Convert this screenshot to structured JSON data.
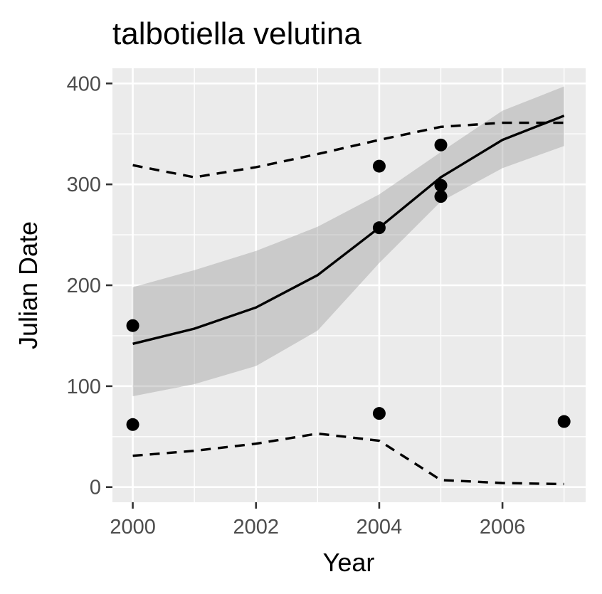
{
  "chart_data": {
    "type": "line",
    "title": "talbotiella velutina",
    "xlabel": "Year",
    "ylabel": "Julian Date",
    "xlim": [
      1999.67,
      2007.35
    ],
    "ylim": [
      -15,
      415
    ],
    "x_ticks": [
      2000,
      2002,
      2004,
      2006
    ],
    "x_tick_labels": [
      "2000",
      "2002",
      "2004",
      "2006"
    ],
    "y_ticks": [
      0,
      100,
      200,
      300,
      400
    ],
    "y_tick_labels": [
      "0",
      "100",
      "200",
      "300",
      "400"
    ],
    "grid": true,
    "legend": "none",
    "points": {
      "x": [
        2000,
        2000,
        2004,
        2004,
        2004,
        2005,
        2005,
        2005,
        2007
      ],
      "y": [
        160,
        62,
        318,
        257,
        73,
        339,
        299,
        288,
        65
      ]
    },
    "fit": {
      "x": [
        2000,
        2001,
        2002,
        2003,
        2004,
        2005,
        2006,
        2007
      ],
      "y": [
        142,
        157,
        178,
        210,
        257,
        307,
        344,
        368
      ]
    },
    "confidence_band": {
      "x": [
        2000,
        2001,
        2002,
        2003,
        2004,
        2005,
        2006,
        2007
      ],
      "lower": [
        90,
        102,
        120,
        155,
        222,
        283,
        316,
        338
      ],
      "upper": [
        198,
        215,
        234,
        258,
        290,
        332,
        373,
        397
      ]
    },
    "upper_bound": {
      "x": [
        2000,
        2001,
        2002,
        2003,
        2004,
        2005,
        2006,
        2007
      ],
      "y": [
        319,
        307,
        317,
        330,
        344,
        357,
        361,
        361
      ]
    },
    "lower_bound": {
      "x": [
        2000,
        2001,
        2002,
        2003,
        2004,
        2005,
        2006,
        2007
      ],
      "y": [
        31,
        36,
        43,
        53,
        46,
        7,
        4,
        3
      ]
    }
  }
}
